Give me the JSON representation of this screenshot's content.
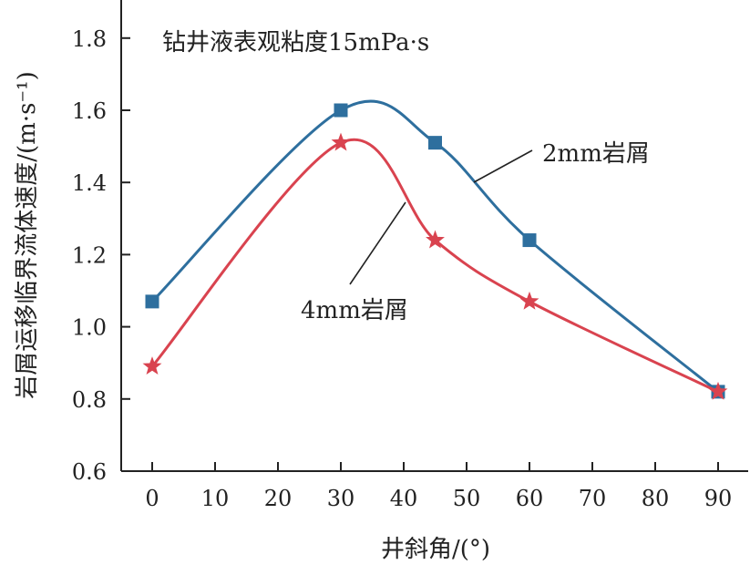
{
  "chart_data": {
    "type": "line",
    "title": "",
    "xlabel": "井斜角/(°)",
    "ylabel": "岩屑运移临界流体速度/(m·s⁻¹)",
    "xlim": [
      -5,
      95
    ],
    "ylim": [
      0.6,
      1.9
    ],
    "x_ticks": [
      0,
      10,
      20,
      30,
      40,
      50,
      60,
      70,
      80,
      90
    ],
    "y_ticks": [
      0.6,
      0.8,
      1.0,
      1.2,
      1.4,
      1.6,
      1.8
    ],
    "y_tick_labels": [
      "0.6",
      "0.8",
      "1.0",
      "1.2",
      "1.4",
      "1.6",
      "1.8"
    ],
    "annotation": "钻井液表观粘度15mPa·s",
    "series": [
      {
        "name": "2mm岩屑",
        "marker": "square",
        "color": "#2e6f9e",
        "x": [
          0,
          30,
          45,
          60,
          90
        ],
        "values": [
          1.07,
          1.6,
          1.51,
          1.24,
          0.82
        ]
      },
      {
        "name": "4mm岩屑",
        "marker": "star",
        "color": "#d9434f",
        "x": [
          0,
          30,
          45,
          60,
          90
        ],
        "values": [
          0.89,
          1.51,
          1.24,
          1.07,
          0.82
        ]
      }
    ]
  }
}
